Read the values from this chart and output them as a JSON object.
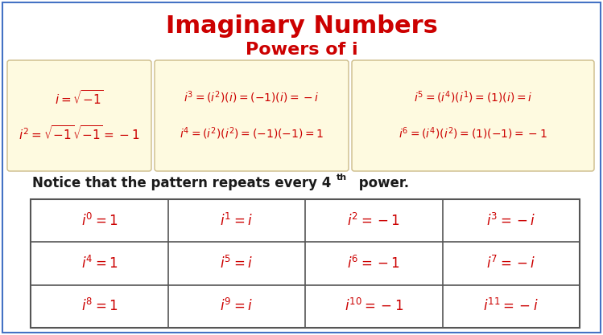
{
  "title": "Imaginary Numbers",
  "subtitle": "Powers of i",
  "title_color": "#CC0000",
  "subtitle_color": "#CC0000",
  "bg_color": "#FFFFFF",
  "border_color": "#4472C4",
  "box_bg_color": "#FEFAE0",
  "box_border_color": "#CCBB88",
  "red_color": "#CC0000",
  "black_color": "#1A1A1A",
  "table_border_color": "#555555",
  "box1_line1": "$i = \\sqrt{-1}$",
  "box1_line2": "$i^2 = \\sqrt{-1}\\sqrt{-1} = -1$",
  "box2_line1": "$i^3 = (i^2)(i) = (-1)(i) = -i$",
  "box2_line2": "$i^4 = (i^2)(i^2) = (-1)(-1) = 1$",
  "box3_line1": "$i^5 = (i^4)(i^1) = (1)(i) = i$",
  "box3_line2": "$i^6 = (i^4)(i^2) = (1)(-1) = -1$",
  "table_data": [
    [
      "$i^0 = 1$",
      "$i^1 = i$",
      "$i^2 = -1$",
      "$i^3 = -i$"
    ],
    [
      "$i^4 = 1$",
      "$i^5 = i$",
      "$i^6 = -1$",
      "$i^7 = -i$"
    ],
    [
      "$i^8 = 1$",
      "$i^9 = i$",
      "$i^{10} = -1$",
      "$i^{11} = -i$"
    ]
  ]
}
